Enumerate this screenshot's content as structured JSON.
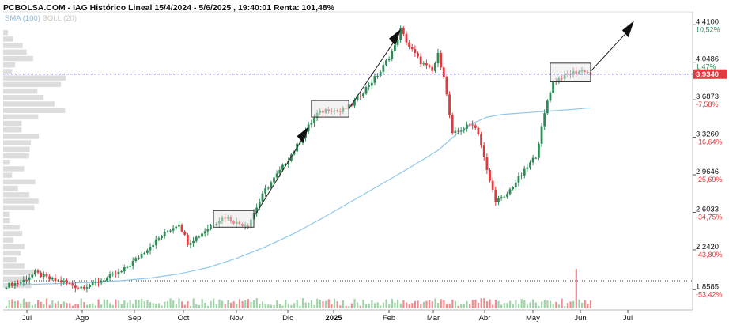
{
  "header": {
    "title": "PCBOLSA.COM - IAG Histórico Lineal 15/4/2024 - 5/6/2025 , 19:40:01 Renta: 101,48%",
    "sma_label": "SMA (100)",
    "boll_label": "BOLL (20)"
  },
  "colors": {
    "up": "#2e8b57",
    "down": "#e0393e",
    "sma": "#8fc8ee",
    "price_line": "#4a4aa8",
    "price_badge": "#e0393e",
    "volume_profile": "#d4d4d4"
  },
  "chart_data": {
    "type": "candlestick",
    "x_ticks": [
      "Jul",
      "Ago",
      "Sep",
      "Oct",
      "Nov",
      "Dic",
      "2025",
      "Feb",
      "Mar",
      "Abr",
      "May",
      "Jun",
      "Jul"
    ],
    "y_axis": [
      {
        "price": "4,4100",
        "pct": "10,52%",
        "value": 4.41
      },
      {
        "price": "4,0486",
        "pct": "1,47%",
        "value": 4.0486
      },
      {
        "price": "3,6873",
        "pct": "-7,58%",
        "value": 3.6873
      },
      {
        "price": "3,3260",
        "pct": "-16,64%",
        "value": 3.326
      },
      {
        "price": "2,9646",
        "pct": "-25,69%",
        "value": 2.9646
      },
      {
        "price": "2,6033",
        "pct": "-34,75%",
        "value": 2.6033
      },
      {
        "price": "2,2420",
        "pct": "-43,80%",
        "value": 2.242
      },
      {
        "price": "1,8585",
        "pct": "-53,42%",
        "value": 1.8585
      }
    ],
    "last_price": {
      "label": "3,9340",
      "value": 3.934
    },
    "ylim": [
      1.83,
      4.45
    ],
    "sma": {
      "name": "SMA (100)",
      "points": [
        [
          0,
          1.905
        ],
        [
          10,
          1.91
        ],
        [
          20,
          1.918
        ],
        [
          30,
          1.93
        ],
        [
          40,
          1.945
        ],
        [
          50,
          1.97
        ],
        [
          60,
          2.01
        ],
        [
          70,
          2.07
        ],
        [
          80,
          2.16
        ],
        [
          90,
          2.27
        ],
        [
          100,
          2.4
        ],
        [
          110,
          2.55
        ],
        [
          120,
          2.71
        ],
        [
          130,
          2.87
        ],
        [
          140,
          3.03
        ],
        [
          150,
          3.2
        ],
        [
          157,
          3.37
        ],
        [
          162,
          3.46
        ],
        [
          167,
          3.52
        ],
        [
          172,
          3.545
        ],
        [
          177,
          3.555
        ],
        [
          182,
          3.565
        ],
        [
          187,
          3.575
        ],
        [
          192,
          3.585
        ],
        [
          197,
          3.595
        ],
        [
          203,
          3.61
        ]
      ]
    },
    "anchors": [
      [
        0,
        1.9
      ],
      [
        5,
        1.93
      ],
      [
        10,
        2.02
      ],
      [
        15,
        1.96
      ],
      [
        20,
        1.93
      ],
      [
        25,
        1.88
      ],
      [
        30,
        1.91
      ],
      [
        35,
        1.97
      ],
      [
        40,
        2.03
      ],
      [
        45,
        2.15
      ],
      [
        50,
        2.28
      ],
      [
        55,
        2.4
      ],
      [
        60,
        2.5
      ],
      [
        63,
        2.31
      ],
      [
        67,
        2.38
      ],
      [
        72,
        2.5
      ],
      [
        76,
        2.56
      ],
      [
        80,
        2.5
      ],
      [
        84,
        2.48
      ],
      [
        86,
        2.6
      ],
      [
        90,
        2.82
      ],
      [
        95,
        3.0
      ],
      [
        100,
        3.2
      ],
      [
        105,
        3.43
      ],
      [
        108,
        3.55
      ],
      [
        112,
        3.6
      ],
      [
        116,
        3.57
      ],
      [
        120,
        3.64
      ],
      [
        125,
        3.8
      ],
      [
        130,
        3.96
      ],
      [
        135,
        4.2
      ],
      [
        137,
        4.36
      ],
      [
        140,
        4.2
      ],
      [
        144,
        4.05
      ],
      [
        148,
        3.96
      ],
      [
        150,
        4.12
      ],
      [
        152,
        3.92
      ],
      [
        155,
        3.35
      ],
      [
        158,
        3.4
      ],
      [
        162,
        3.46
      ],
      [
        164,
        3.37
      ],
      [
        167,
        3.0
      ],
      [
        170,
        2.72
      ],
      [
        173,
        2.74
      ],
      [
        176,
        2.86
      ],
      [
        180,
        3.0
      ],
      [
        184,
        3.15
      ],
      [
        188,
        3.68
      ],
      [
        190,
        3.86
      ],
      [
        194,
        3.92
      ],
      [
        197,
        3.95
      ],
      [
        201,
        3.97
      ],
      [
        203,
        3.93
      ]
    ],
    "volume_spikes": {
      "85": 8,
      "161": 5,
      "198": 50,
      "200": 7
    }
  }
}
